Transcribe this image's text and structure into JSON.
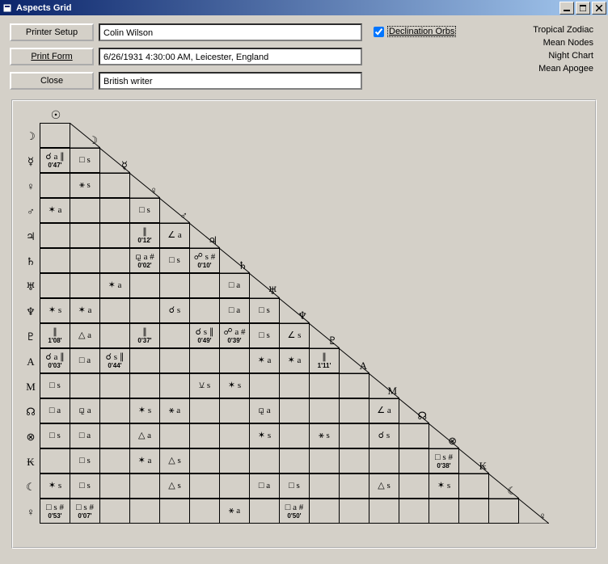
{
  "window": {
    "title": "Aspects Grid"
  },
  "buttons": {
    "printerSetup": "Printer Setup",
    "printForm": "Print Form",
    "close": "Close"
  },
  "fields": {
    "name": "Colin Wilson",
    "datetime": "6/26/1931 4:30:00 AM, Leicester, England",
    "desc": "British writer"
  },
  "checkbox": {
    "label": "Declination Orbs",
    "checked": true
  },
  "rightInfo": [
    "Tropical Zodiac",
    "Mean Nodes",
    "Night Chart",
    "Mean Apogee"
  ],
  "planets": [
    "☉",
    "☽",
    "☿",
    "♀",
    "♂",
    "♃",
    "♄",
    "♅",
    "♆",
    "♇",
    "A",
    "M",
    "☊",
    "⊗",
    "₭",
    "☾",
    "♀"
  ],
  "glyphs": {
    "conj": "☌",
    "opp": "☍",
    "tri": "△",
    "squ": "□",
    "sex": "✶",
    "ssq": "∠",
    "par": "∥",
    "ses": "⚼",
    "qui": "Q",
    "ssx": "⚺"
  },
  "cells": [
    [],
    [
      ""
    ],
    [
      "☌ a ∥|0'47'",
      "□ s"
    ],
    [
      "",
      "⚹ s"
    ],
    [
      "✶ a",
      "",
      "",
      "□ s"
    ],
    [
      "",
      "",
      "",
      "∥|0'12'",
      "∠ a"
    ],
    [
      "",
      "",
      "",
      "⚼ a #|0'02'",
      "□ s",
      "☍ s #|0'10'"
    ],
    [
      "",
      "",
      "✶ a",
      "",
      "",
      "",
      "□ a"
    ],
    [
      "✶ s",
      "✶ a",
      "",
      "",
      "☌ s",
      "",
      "□ a",
      "□ s"
    ],
    [
      "∥|1'08'",
      "△ a",
      "",
      "∥|0'37'",
      "",
      "☌ s ∥|0'49'",
      "☍ a #|0'39'",
      "□ s",
      "∠ s"
    ],
    [
      "☌ a ∥|0'03'",
      "□ a",
      "☌ s ∥|0'44'",
      "",
      "",
      "",
      "",
      "✶ a",
      "✶ a",
      "∥|1'11'"
    ],
    [
      "□ s",
      "",
      "",
      "",
      "",
      "⚺ s",
      "✶ s",
      "",
      "",
      "",
      " "
    ],
    [
      "□ a",
      "⚼ a",
      "",
      "✶ s",
      "⚹ a",
      "",
      "",
      "⚼ a",
      "",
      "",
      "",
      "∠ a"
    ],
    [
      "□ s",
      "□ a",
      "",
      "△ a",
      "",
      "",
      "",
      "✶ s",
      "",
      "⚹ s",
      "",
      "☌ s",
      ""
    ],
    [
      "",
      "□ s",
      "",
      "✶ a",
      "△ s",
      "",
      "",
      "",
      "",
      "",
      "",
      "",
      "",
      "□ s #|0'38'"
    ],
    [
      "✶ s",
      "□ s",
      "",
      "",
      "△ s",
      "",
      "",
      "□ a",
      "□ s",
      "",
      "",
      "△ s",
      "",
      "✶ s",
      ""
    ],
    [
      "□ s #|0'53'",
      "□ s #|0'07'",
      "",
      "",
      "",
      "",
      "⚹ a",
      "",
      "□ a #|0'50'",
      "",
      "",
      "",
      "",
      "",
      "",
      ""
    ]
  ]
}
